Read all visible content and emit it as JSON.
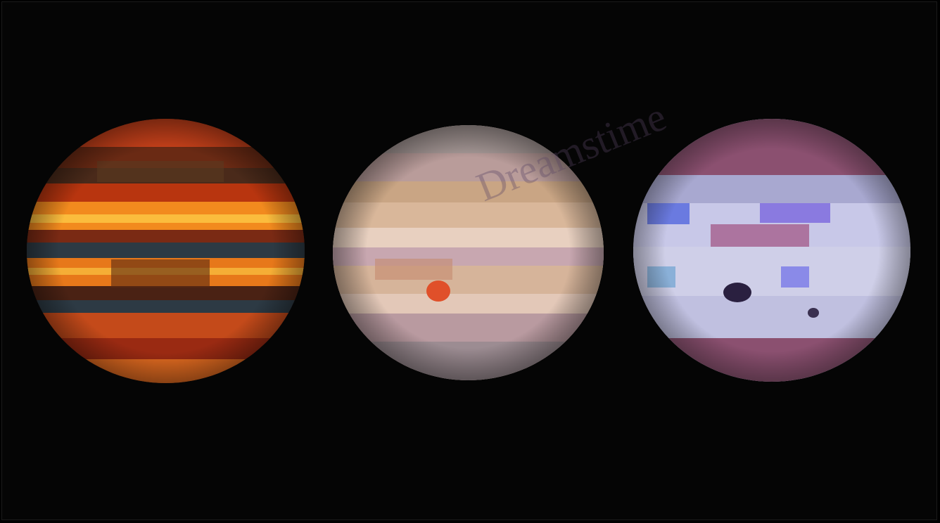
{
  "images": [
    {
      "name": "jupiter-infrared",
      "colors": [
        "#b8350f",
        "#f28a1e",
        "#ffd24a",
        "#3a1a10",
        "#2d3a44"
      ]
    },
    {
      "name": "jupiter-visible",
      "colors": [
        "#d9b79a",
        "#c89f86",
        "#e8d0c0",
        "#b46a6a",
        "#e0502a"
      ]
    },
    {
      "name": "jupiter-ultraviolet",
      "colors": [
        "#c8c8e8",
        "#8b5070",
        "#6a7ae0",
        "#2a2040"
      ]
    }
  ],
  "captions": [
    {
      "line1": "",
      "line2": "",
      "line3": ""
    },
    {
      "line1": "",
      "line2": "",
      "line3": ""
    },
    {
      "line1": "",
      "line2": "",
      "line3": ""
    }
  ],
  "watermark": {
    "text": "Dreamstime"
  }
}
